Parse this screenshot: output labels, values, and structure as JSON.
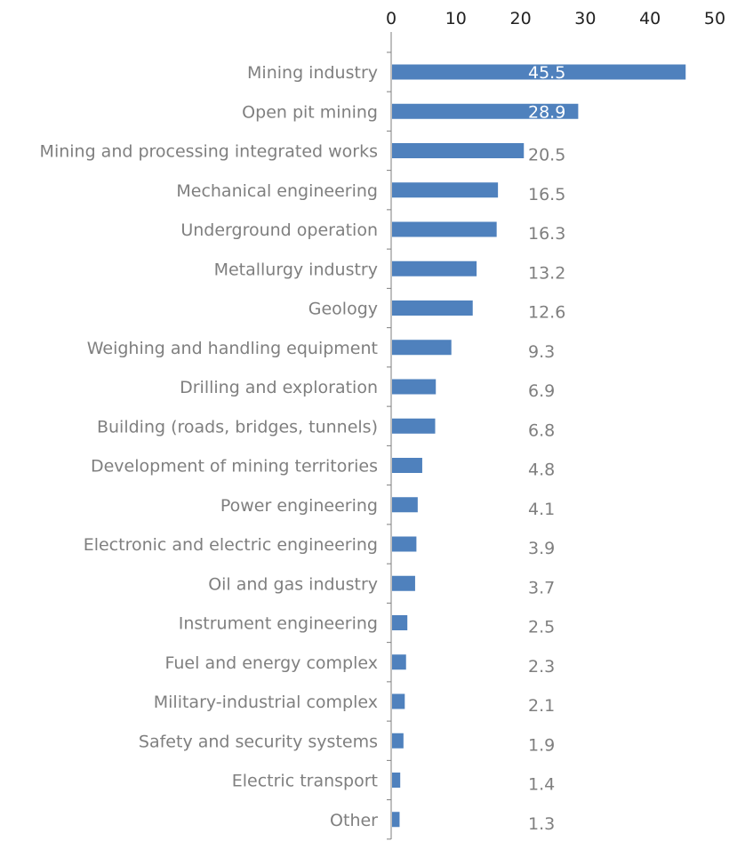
{
  "chart_data": {
    "type": "bar",
    "orientation": "horizontal",
    "categories": [
      "Mining industry",
      "Open pit mining",
      "Mining and processing integrated works",
      "Mechanical engineering",
      "Underground operation",
      "Metallurgy industry",
      "Geology",
      "Weighing and handling equipment",
      "Drilling and exploration",
      "Building (roads, bridges, tunnels)",
      "Development of mining territories",
      "Power engineering",
      "Electronic and electric engineering",
      "Oil and gas industry",
      "Instrument engineering",
      "Fuel and energy complex",
      "Military-industrial complex",
      "Safety and security systems",
      "Electric transport",
      "Other"
    ],
    "values": [
      45.5,
      28.9,
      20.5,
      16.5,
      16.3,
      13.2,
      12.6,
      9.3,
      6.9,
      6.8,
      4.8,
      4.1,
      3.9,
      3.7,
      2.5,
      2.3,
      2.1,
      1.9,
      1.4,
      1.3
    ],
    "value_labels": [
      "45.5",
      "28.9",
      "20.5",
      "16.5",
      "16.3",
      "13.2",
      "12.6",
      "9.3",
      "6.9",
      "6.8",
      "4.8",
      "4.1",
      "3.9",
      "3.7",
      "2.5",
      "2.3",
      "2.1",
      "1.9",
      "1.4",
      "1.3"
    ],
    "x_ticks": [
      "0",
      "10",
      "20",
      "30",
      "40",
      "50"
    ],
    "xlim": [
      0,
      50
    ],
    "x_axis_position": "top",
    "title": "",
    "xlabel": "",
    "ylabel": "",
    "grid": false,
    "legend": "none",
    "colors": {
      "bar": "#4f81bd",
      "axis": "#7f7f7f",
      "category_text": "#7f7f7f",
      "tick_text": "#222222",
      "value_text": "#7f7f7f",
      "value_text_inside": "#ffffff"
    }
  }
}
